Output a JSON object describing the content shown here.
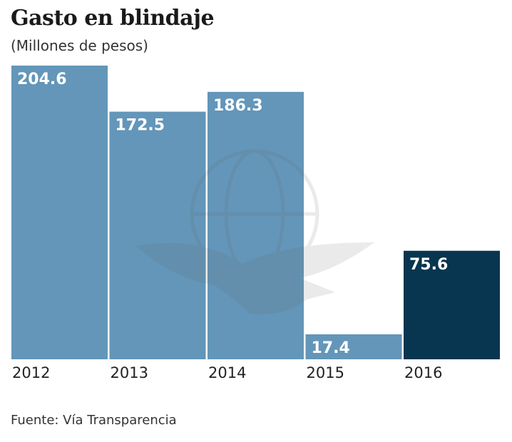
{
  "chart_data": {
    "type": "bar",
    "title": "Gasto en blindaje",
    "subtitle": "(Millones de pesos)",
    "categories": [
      "2012",
      "2013",
      "2014",
      "2015",
      "2016"
    ],
    "values": [
      204.6,
      172.5,
      186.3,
      17.4,
      75.6
    ],
    "data_labels": [
      "204.6",
      "172.5",
      "186.3",
      "17.4",
      "75.6"
    ],
    "highlighted_category": "2016",
    "colors": {
      "default": "#6396b9",
      "highlight": "#08354f"
    },
    "xlabel": "",
    "ylabel": "",
    "ylim": [
      0,
      204.6
    ],
    "grid": false,
    "legend": "none",
    "watermark": "eagle-globe-seal",
    "source": "Fuente: Vía Transparencia"
  }
}
